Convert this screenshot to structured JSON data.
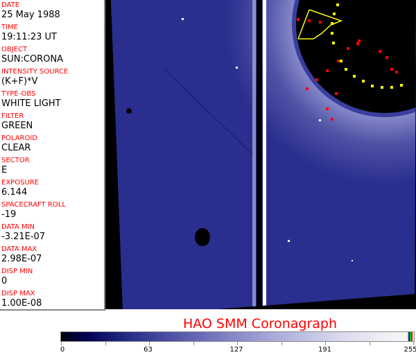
{
  "header_fields": [
    {
      "label": "DATE",
      "value": "25 May 1988"
    },
    {
      "label": "TIME",
      "value": "19:11:23 UT"
    },
    {
      "label": "OBJECT",
      "value": "SUN:CORONA"
    },
    {
      "label": "INTENSITY SOURCE",
      "value": "(K+F)*V"
    },
    {
      "label": "TYPE-OBS",
      "value": "WHITE LIGHT"
    },
    {
      "label": "FILTER",
      "value": "GREEN"
    },
    {
      "label": "POLAROID",
      "value": "CLEAR"
    },
    {
      "label": "SECTOR",
      "value": "E"
    },
    {
      "label": "EXPOSURE",
      "value": "6.144"
    },
    {
      "label": "SPACECRAFT ROLL",
      "value": "-19"
    },
    {
      "label": "DATA MIN",
      "value": "-3.21E-07"
    },
    {
      "label": "DATA MAX",
      "value": "2.98E-07"
    },
    {
      "label": "DISP MIN",
      "value": "0"
    },
    {
      "label": "DISP MAX",
      "value": "1.00E-08"
    }
  ],
  "title": "HAO  SMM Coronagraph",
  "colorbar": {
    "min": 0,
    "max": 255,
    "tick_labels": [
      "0",
      "63",
      "127",
      "191",
      "255"
    ],
    "colormap": [
      "#000010",
      "#000050",
      "#6a6cb8",
      "#f8f8f8"
    ],
    "overlay_colors": [
      "#ffff00",
      "#0000ff",
      "#00c000",
      "#ff0000"
    ]
  },
  "colors": {
    "label": "#ff0000",
    "value": "#000000",
    "image_blue": "#2a2e8e",
    "occulter": "#000000"
  }
}
